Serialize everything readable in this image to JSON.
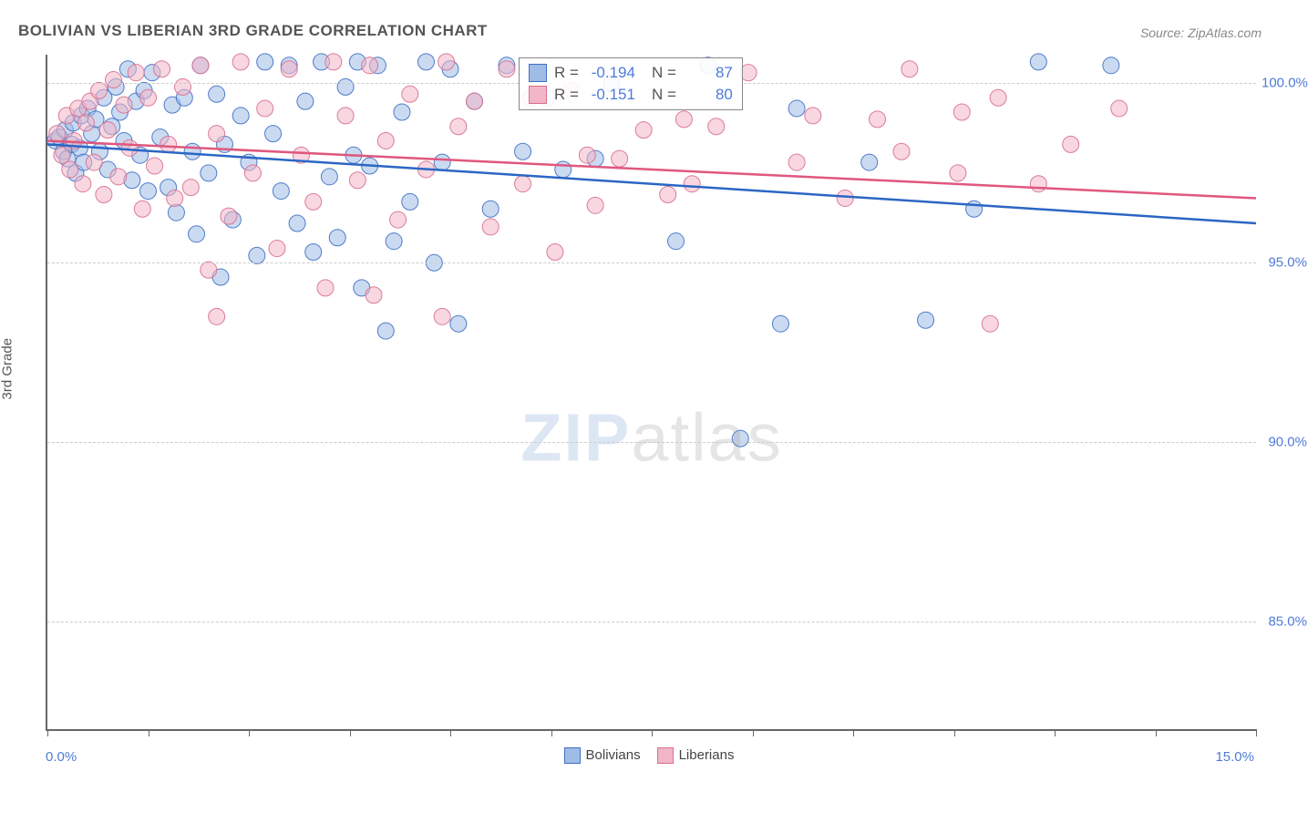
{
  "title": "BOLIVIAN VS LIBERIAN 3RD GRADE CORRELATION CHART",
  "source": "Source: ZipAtlas.com",
  "ylabel": "3rd Grade",
  "watermark": {
    "part1": "ZIP",
    "part2": "atlas"
  },
  "chart": {
    "type": "scatter",
    "xlim": [
      0,
      15
    ],
    "ylim": [
      82,
      100.8
    ],
    "x_tick_positions": [
      0,
      1.25,
      2.5,
      3.75,
      5,
      6.25,
      7.5,
      8.75,
      10,
      11.25,
      12.5,
      13.75,
      15
    ],
    "y_gridlines": [
      85,
      90,
      95,
      100
    ],
    "y_tick_labels": {
      "85": "85.0%",
      "90": "90.0%",
      "95": "95.0%",
      "100": "100.0%"
    },
    "x_min_label": "0.0%",
    "x_max_label": "15.0%",
    "axis_label_color": "#4f7bd9",
    "background_color": "#ffffff",
    "grid_color": "#cccccc",
    "marker_radius": 9,
    "marker_opacity": 0.55,
    "marker_stroke_opacity": 0.9,
    "trend_line_width": 2.5,
    "series": [
      {
        "name": "Bolivians",
        "fill": "#9fbce6",
        "stroke": "#3f6fc4",
        "trend_stroke": "#2b66c4",
        "stats": {
          "R": "-0.194",
          "N": "87"
        },
        "trend": {
          "x1": 0,
          "y1": 98.3,
          "x2": 15,
          "y2": 96.1
        },
        "points": [
          [
            0.1,
            98.4
          ],
          [
            0.15,
            98.5
          ],
          [
            0.2,
            98.1
          ],
          [
            0.22,
            98.7
          ],
          [
            0.25,
            97.9
          ],
          [
            0.3,
            98.3
          ],
          [
            0.32,
            98.9
          ],
          [
            0.35,
            97.5
          ],
          [
            0.4,
            98.2
          ],
          [
            0.42,
            99.1
          ],
          [
            0.45,
            97.8
          ],
          [
            0.5,
            99.3
          ],
          [
            0.55,
            98.6
          ],
          [
            0.6,
            99.0
          ],
          [
            0.65,
            98.1
          ],
          [
            0.7,
            99.6
          ],
          [
            0.75,
            97.6
          ],
          [
            0.8,
            98.8
          ],
          [
            0.85,
            99.9
          ],
          [
            0.9,
            99.2
          ],
          [
            0.95,
            98.4
          ],
          [
            1.0,
            100.4
          ],
          [
            1.05,
            97.3
          ],
          [
            1.1,
            99.5
          ],
          [
            1.15,
            98.0
          ],
          [
            1.2,
            99.8
          ],
          [
            1.25,
            97.0
          ],
          [
            1.3,
            100.3
          ],
          [
            1.4,
            98.5
          ],
          [
            1.5,
            97.1
          ],
          [
            1.55,
            99.4
          ],
          [
            1.6,
            96.4
          ],
          [
            1.7,
            99.6
          ],
          [
            1.8,
            98.1
          ],
          [
            1.85,
            95.8
          ],
          [
            1.9,
            100.5
          ],
          [
            2.0,
            97.5
          ],
          [
            2.1,
            99.7
          ],
          [
            2.15,
            94.6
          ],
          [
            2.2,
            98.3
          ],
          [
            2.3,
            96.2
          ],
          [
            2.4,
            99.1
          ],
          [
            2.5,
            97.8
          ],
          [
            2.6,
            95.2
          ],
          [
            2.7,
            100.6
          ],
          [
            2.8,
            98.6
          ],
          [
            2.9,
            97.0
          ],
          [
            3.0,
            100.5
          ],
          [
            3.1,
            96.1
          ],
          [
            3.2,
            99.5
          ],
          [
            3.3,
            95.3
          ],
          [
            3.4,
            100.6
          ],
          [
            3.5,
            97.4
          ],
          [
            3.6,
            95.7
          ],
          [
            3.7,
            99.9
          ],
          [
            3.8,
            98.0
          ],
          [
            3.85,
            100.6
          ],
          [
            3.9,
            94.3
          ],
          [
            4.0,
            97.7
          ],
          [
            4.1,
            100.5
          ],
          [
            4.2,
            93.1
          ],
          [
            4.3,
            95.6
          ],
          [
            4.4,
            99.2
          ],
          [
            4.5,
            96.7
          ],
          [
            4.7,
            100.6
          ],
          [
            4.8,
            95.0
          ],
          [
            4.9,
            97.8
          ],
          [
            5.0,
            100.4
          ],
          [
            5.1,
            93.3
          ],
          [
            5.3,
            99.5
          ],
          [
            5.5,
            96.5
          ],
          [
            5.7,
            100.5
          ],
          [
            5.9,
            98.1
          ],
          [
            6.2,
            99.6
          ],
          [
            6.4,
            97.6
          ],
          [
            6.8,
            97.9
          ],
          [
            7.0,
            100.0
          ],
          [
            7.8,
            95.6
          ],
          [
            8.2,
            100.5
          ],
          [
            8.6,
            90.1
          ],
          [
            9.1,
            93.3
          ],
          [
            9.3,
            99.3
          ],
          [
            10.2,
            97.8
          ],
          [
            10.9,
            93.4
          ],
          [
            11.5,
            96.5
          ],
          [
            12.3,
            100.6
          ],
          [
            13.2,
            100.5
          ]
        ]
      },
      {
        "name": "Liberians",
        "fill": "#f2b6c6",
        "stroke": "#d86f8e",
        "trend_stroke": "#e0577e",
        "stats": {
          "R": "-0.151",
          "N": "80"
        },
        "trend": {
          "x1": 0,
          "y1": 98.4,
          "x2": 15,
          "y2": 96.8
        },
        "points": [
          [
            0.12,
            98.6
          ],
          [
            0.18,
            98.0
          ],
          [
            0.24,
            99.1
          ],
          [
            0.28,
            97.6
          ],
          [
            0.33,
            98.4
          ],
          [
            0.38,
            99.3
          ],
          [
            0.44,
            97.2
          ],
          [
            0.48,
            98.9
          ],
          [
            0.53,
            99.5
          ],
          [
            0.58,
            97.8
          ],
          [
            0.64,
            99.8
          ],
          [
            0.7,
            96.9
          ],
          [
            0.75,
            98.7
          ],
          [
            0.82,
            100.1
          ],
          [
            0.88,
            97.4
          ],
          [
            0.95,
            99.4
          ],
          [
            1.02,
            98.2
          ],
          [
            1.1,
            100.3
          ],
          [
            1.18,
            96.5
          ],
          [
            1.25,
            99.6
          ],
          [
            1.33,
            97.7
          ],
          [
            1.42,
            100.4
          ],
          [
            1.5,
            98.3
          ],
          [
            1.58,
            96.8
          ],
          [
            1.68,
            99.9
          ],
          [
            1.78,
            97.1
          ],
          [
            1.9,
            100.5
          ],
          [
            2.0,
            94.8
          ],
          [
            2.1,
            98.6
          ],
          [
            2.1,
            93.5
          ],
          [
            2.25,
            96.3
          ],
          [
            2.4,
            100.6
          ],
          [
            2.55,
            97.5
          ],
          [
            2.7,
            99.3
          ],
          [
            2.85,
            95.4
          ],
          [
            3.0,
            100.4
          ],
          [
            3.15,
            98.0
          ],
          [
            3.3,
            96.7
          ],
          [
            3.45,
            94.3
          ],
          [
            3.55,
            100.6
          ],
          [
            3.7,
            99.1
          ],
          [
            3.85,
            97.3
          ],
          [
            4.0,
            100.5
          ],
          [
            4.05,
            94.1
          ],
          [
            4.2,
            98.4
          ],
          [
            4.35,
            96.2
          ],
          [
            4.5,
            99.7
          ],
          [
            4.7,
            97.6
          ],
          [
            4.9,
            93.5
          ],
          [
            4.95,
            100.6
          ],
          [
            5.1,
            98.8
          ],
          [
            5.3,
            99.5
          ],
          [
            5.5,
            96.0
          ],
          [
            5.7,
            100.4
          ],
          [
            5.9,
            97.2
          ],
          [
            6.0,
            99.6
          ],
          [
            6.3,
            95.3
          ],
          [
            6.5,
            99.8
          ],
          [
            6.7,
            98.0
          ],
          [
            6.8,
            96.6
          ],
          [
            7.1,
            97.9
          ],
          [
            7.4,
            98.7
          ],
          [
            7.7,
            96.9
          ],
          [
            7.9,
            99.0
          ],
          [
            8.0,
            97.2
          ],
          [
            8.3,
            98.8
          ],
          [
            8.7,
            100.3
          ],
          [
            9.3,
            97.8
          ],
          [
            9.5,
            99.1
          ],
          [
            9.9,
            96.8
          ],
          [
            10.3,
            99.0
          ],
          [
            10.6,
            98.1
          ],
          [
            10.7,
            100.4
          ],
          [
            11.3,
            97.5
          ],
          [
            11.35,
            99.2
          ],
          [
            11.7,
            93.3
          ],
          [
            11.8,
            99.6
          ],
          [
            12.3,
            97.2
          ],
          [
            12.7,
            98.3
          ],
          [
            13.3,
            99.3
          ]
        ]
      }
    ]
  },
  "legend": {
    "items": [
      {
        "label": "Bolivians",
        "fill": "#9fbce6",
        "stroke": "#3f6fc4"
      },
      {
        "label": "Liberians",
        "fill": "#f2b6c6",
        "stroke": "#d86f8e"
      }
    ]
  },
  "stats_box": {
    "r_label": "R =",
    "n_label": "N ="
  }
}
